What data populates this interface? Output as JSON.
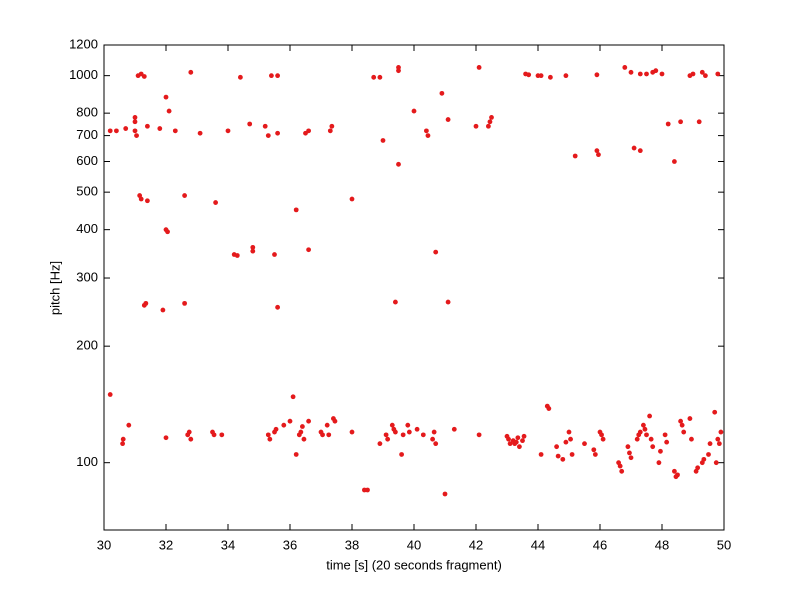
{
  "chart_data": {
    "type": "scatter",
    "xlabel": "time [s] (20 seconds fragment)",
    "ylabel": "pitch [Hz]",
    "color": "#e41a1c",
    "log_y": true,
    "xlim": [
      30,
      50
    ],
    "xticks": [
      30,
      32,
      34,
      36,
      38,
      40,
      42,
      44,
      46,
      48,
      50
    ],
    "ylim": [
      67,
      1200
    ],
    "yticks": [
      100,
      200,
      300,
      400,
      500,
      600,
      700,
      800,
      1000,
      1200
    ],
    "x": [
      31.1,
      31.2,
      31.3,
      32.8,
      34.4,
      35.4,
      35.6,
      38.7,
      38.9,
      39.5,
      39.5,
      42.1,
      43.6,
      43.7,
      44,
      44.1,
      44.4,
      44.9,
      45.9,
      46.8,
      47,
      47.3,
      47.5,
      47.7,
      47.8,
      48,
      48.9,
      49,
      49.3,
      49.4,
      49.8,
      30.2,
      30.4,
      30.7,
      31,
      31,
      31,
      31.05,
      31.4,
      31.8,
      32,
      32.1,
      32.3,
      33.1,
      34,
      34.7,
      35.2,
      35.3,
      35.6,
      36.5,
      36.6,
      37.3,
      37.35,
      39,
      39.5,
      40,
      40.4,
      40.45,
      40.9,
      41.1,
      42,
      42.4,
      42.45,
      42.5,
      45.2,
      45.9,
      45.95,
      47.1,
      47.3,
      48.2,
      48.4,
      48.6,
      49.2,
      31.2,
      31.15,
      31.4,
      32.6,
      33.6,
      36.2,
      38,
      32,
      32.05,
      34.2,
      34.3,
      34.8,
      34.8,
      35.5,
      36.6,
      40.7,
      31.3,
      31.35,
      31.9,
      32.6,
      35.6,
      39.4,
      41.1,
      30.2,
      30.6,
      30.62,
      30.8,
      32,
      32.7,
      32.75,
      32.8,
      33.5,
      33.55,
      33.8,
      35.3,
      35.35,
      35.5,
      35.55,
      35.8,
      36,
      36.1,
      36.2,
      36.3,
      36.35,
      36.4,
      36.45,
      36.6,
      37,
      37.05,
      37.2,
      37.25,
      37.4,
      37.45,
      38,
      38.4,
      38.5,
      38.9,
      39.1,
      39.15,
      39.3,
      39.35,
      39.4,
      39.6,
      39.65,
      39.8,
      39.85,
      40.1,
      40.3,
      40.6,
      40.65,
      40.7,
      41,
      41.3,
      42.1,
      43,
      43.05,
      43.1,
      43.2,
      43.25,
      43.3,
      43.35,
      43.4,
      43.5,
      43.55,
      44.1,
      44.3,
      44.35,
      44.6,
      44.65,
      44.8,
      44.9,
      45,
      45.05,
      45.1,
      45.5,
      45.8,
      45.85,
      46,
      46.05,
      46.1,
      46.6,
      46.65,
      46.7,
      46.9,
      46.95,
      47,
      47.2,
      47.25,
      47.3,
      47.4,
      47.45,
      47.5,
      47.6,
      47.65,
      47.7,
      47.9,
      47.95,
      48.1,
      48.15,
      48.4,
      48.45,
      48.5,
      48.6,
      48.65,
      48.7,
      48.9,
      48.95,
      49.1,
      49.15,
      49.3,
      49.35,
      49.5,
      49.55,
      49.7,
      49.75,
      49.8,
      49.85,
      49.9
    ],
    "values": [
      1000,
      1010,
      995,
      1020,
      990,
      1000,
      1000,
      990,
      990,
      1050,
      1030,
      1050,
      1010,
      1005,
      1000,
      1000,
      990,
      1000,
      1005,
      1050,
      1020,
      1010,
      1010,
      1020,
      1030,
      1010,
      1000,
      1010,
      1020,
      1000,
      1010,
      720,
      720,
      730,
      780,
      760,
      720,
      700,
      740,
      730,
      880,
      810,
      720,
      710,
      720,
      750,
      740,
      700,
      710,
      710,
      720,
      720,
      740,
      680,
      590,
      810,
      720,
      700,
      900,
      770,
      740,
      740,
      760,
      780,
      620,
      640,
      625,
      650,
      640,
      750,
      600,
      760,
      760,
      480,
      490,
      475,
      490,
      470,
      450,
      480,
      400,
      395,
      345,
      343,
      360,
      352,
      345,
      355,
      350,
      255,
      258,
      248,
      258,
      252,
      260,
      260,
      150,
      112,
      115,
      125,
      116,
      118,
      120,
      115,
      120,
      118,
      118,
      118,
      115,
      120,
      122,
      125,
      128,
      148,
      105,
      118,
      120,
      124,
      115,
      128,
      120,
      118,
      125,
      118,
      130,
      128,
      120,
      85,
      85,
      112,
      118,
      115,
      125,
      122,
      120,
      105,
      118,
      125,
      120,
      122,
      118,
      115,
      120,
      112,
      83,
      122,
      118,
      117,
      115,
      112,
      114,
      112,
      113,
      116,
      110,
      114,
      117,
      105,
      140,
      138,
      110,
      104,
      102,
      113,
      120,
      115,
      105,
      112,
      108,
      105,
      120,
      118,
      115,
      100,
      98,
      95,
      110,
      106,
      103,
      115,
      118,
      120,
      125,
      122,
      118,
      132,
      115,
      110,
      100,
      107,
      118,
      113,
      95,
      92,
      93,
      128,
      125,
      120,
      130,
      115,
      95,
      97,
      100,
      102,
      105,
      112,
      135,
      100,
      115,
      112,
      120
    ]
  }
}
